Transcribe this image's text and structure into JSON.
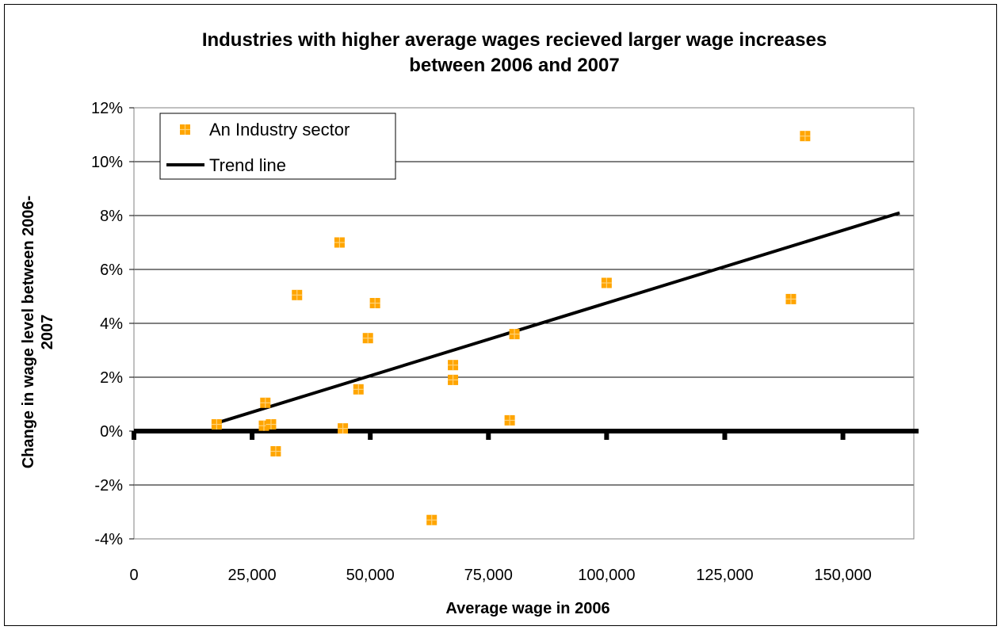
{
  "chart_data": {
    "type": "scatter",
    "title_lines": [
      "Industries with higher average wages recieved larger wage increases",
      "between 2006 and 2007"
    ],
    "xlabel": "Average wage in 2006",
    "ylabel_lines": [
      "Change in wage level between 2006-",
      "2007"
    ],
    "xlim": [
      0,
      165000
    ],
    "ylim": [
      -4,
      12
    ],
    "x_ticks": [
      0,
      25000,
      50000,
      75000,
      100000,
      125000,
      150000
    ],
    "x_tick_labels": [
      "0",
      "25,000",
      "50,000",
      "75,000",
      "100,000",
      "125,000",
      "150,000"
    ],
    "y_ticks": [
      -4,
      -2,
      0,
      2,
      4,
      6,
      8,
      10,
      12
    ],
    "y_tick_labels": [
      "-4%",
      "-2%",
      "0%",
      "2%",
      "4%",
      "6%",
      "8%",
      "10%",
      "12%"
    ],
    "grid": "horizontal",
    "legend_position": "top-left",
    "series": [
      {
        "name": "An Industry sector",
        "kind": "scatter",
        "color": "#FFA500",
        "marker": "square",
        "points": [
          {
            "x": 17500,
            "y": 0.25
          },
          {
            "x": 27500,
            "y": 0.2
          },
          {
            "x": 27800,
            "y": 1.05
          },
          {
            "x": 29000,
            "y": 0.25
          },
          {
            "x": 30000,
            "y": -0.75
          },
          {
            "x": 34500,
            "y": 5.05
          },
          {
            "x": 43500,
            "y": 7.0
          },
          {
            "x": 44200,
            "y": 0.1
          },
          {
            "x": 47500,
            "y": 1.55
          },
          {
            "x": 49500,
            "y": 3.45
          },
          {
            "x": 51000,
            "y": 4.75
          },
          {
            "x": 63000,
            "y": -3.3
          },
          {
            "x": 67500,
            "y": 2.45
          },
          {
            "x": 67500,
            "y": 1.9
          },
          {
            "x": 79500,
            "y": 0.4
          },
          {
            "x": 80500,
            "y": 3.6
          },
          {
            "x": 100000,
            "y": 5.5
          },
          {
            "x": 139000,
            "y": 4.9
          },
          {
            "x": 142000,
            "y": 10.95
          }
        ]
      },
      {
        "name": "Trend line",
        "kind": "line",
        "color": "#000000",
        "points": [
          {
            "x": 17500,
            "y": 0.3
          },
          {
            "x": 162000,
            "y": 8.1
          }
        ]
      }
    ]
  }
}
